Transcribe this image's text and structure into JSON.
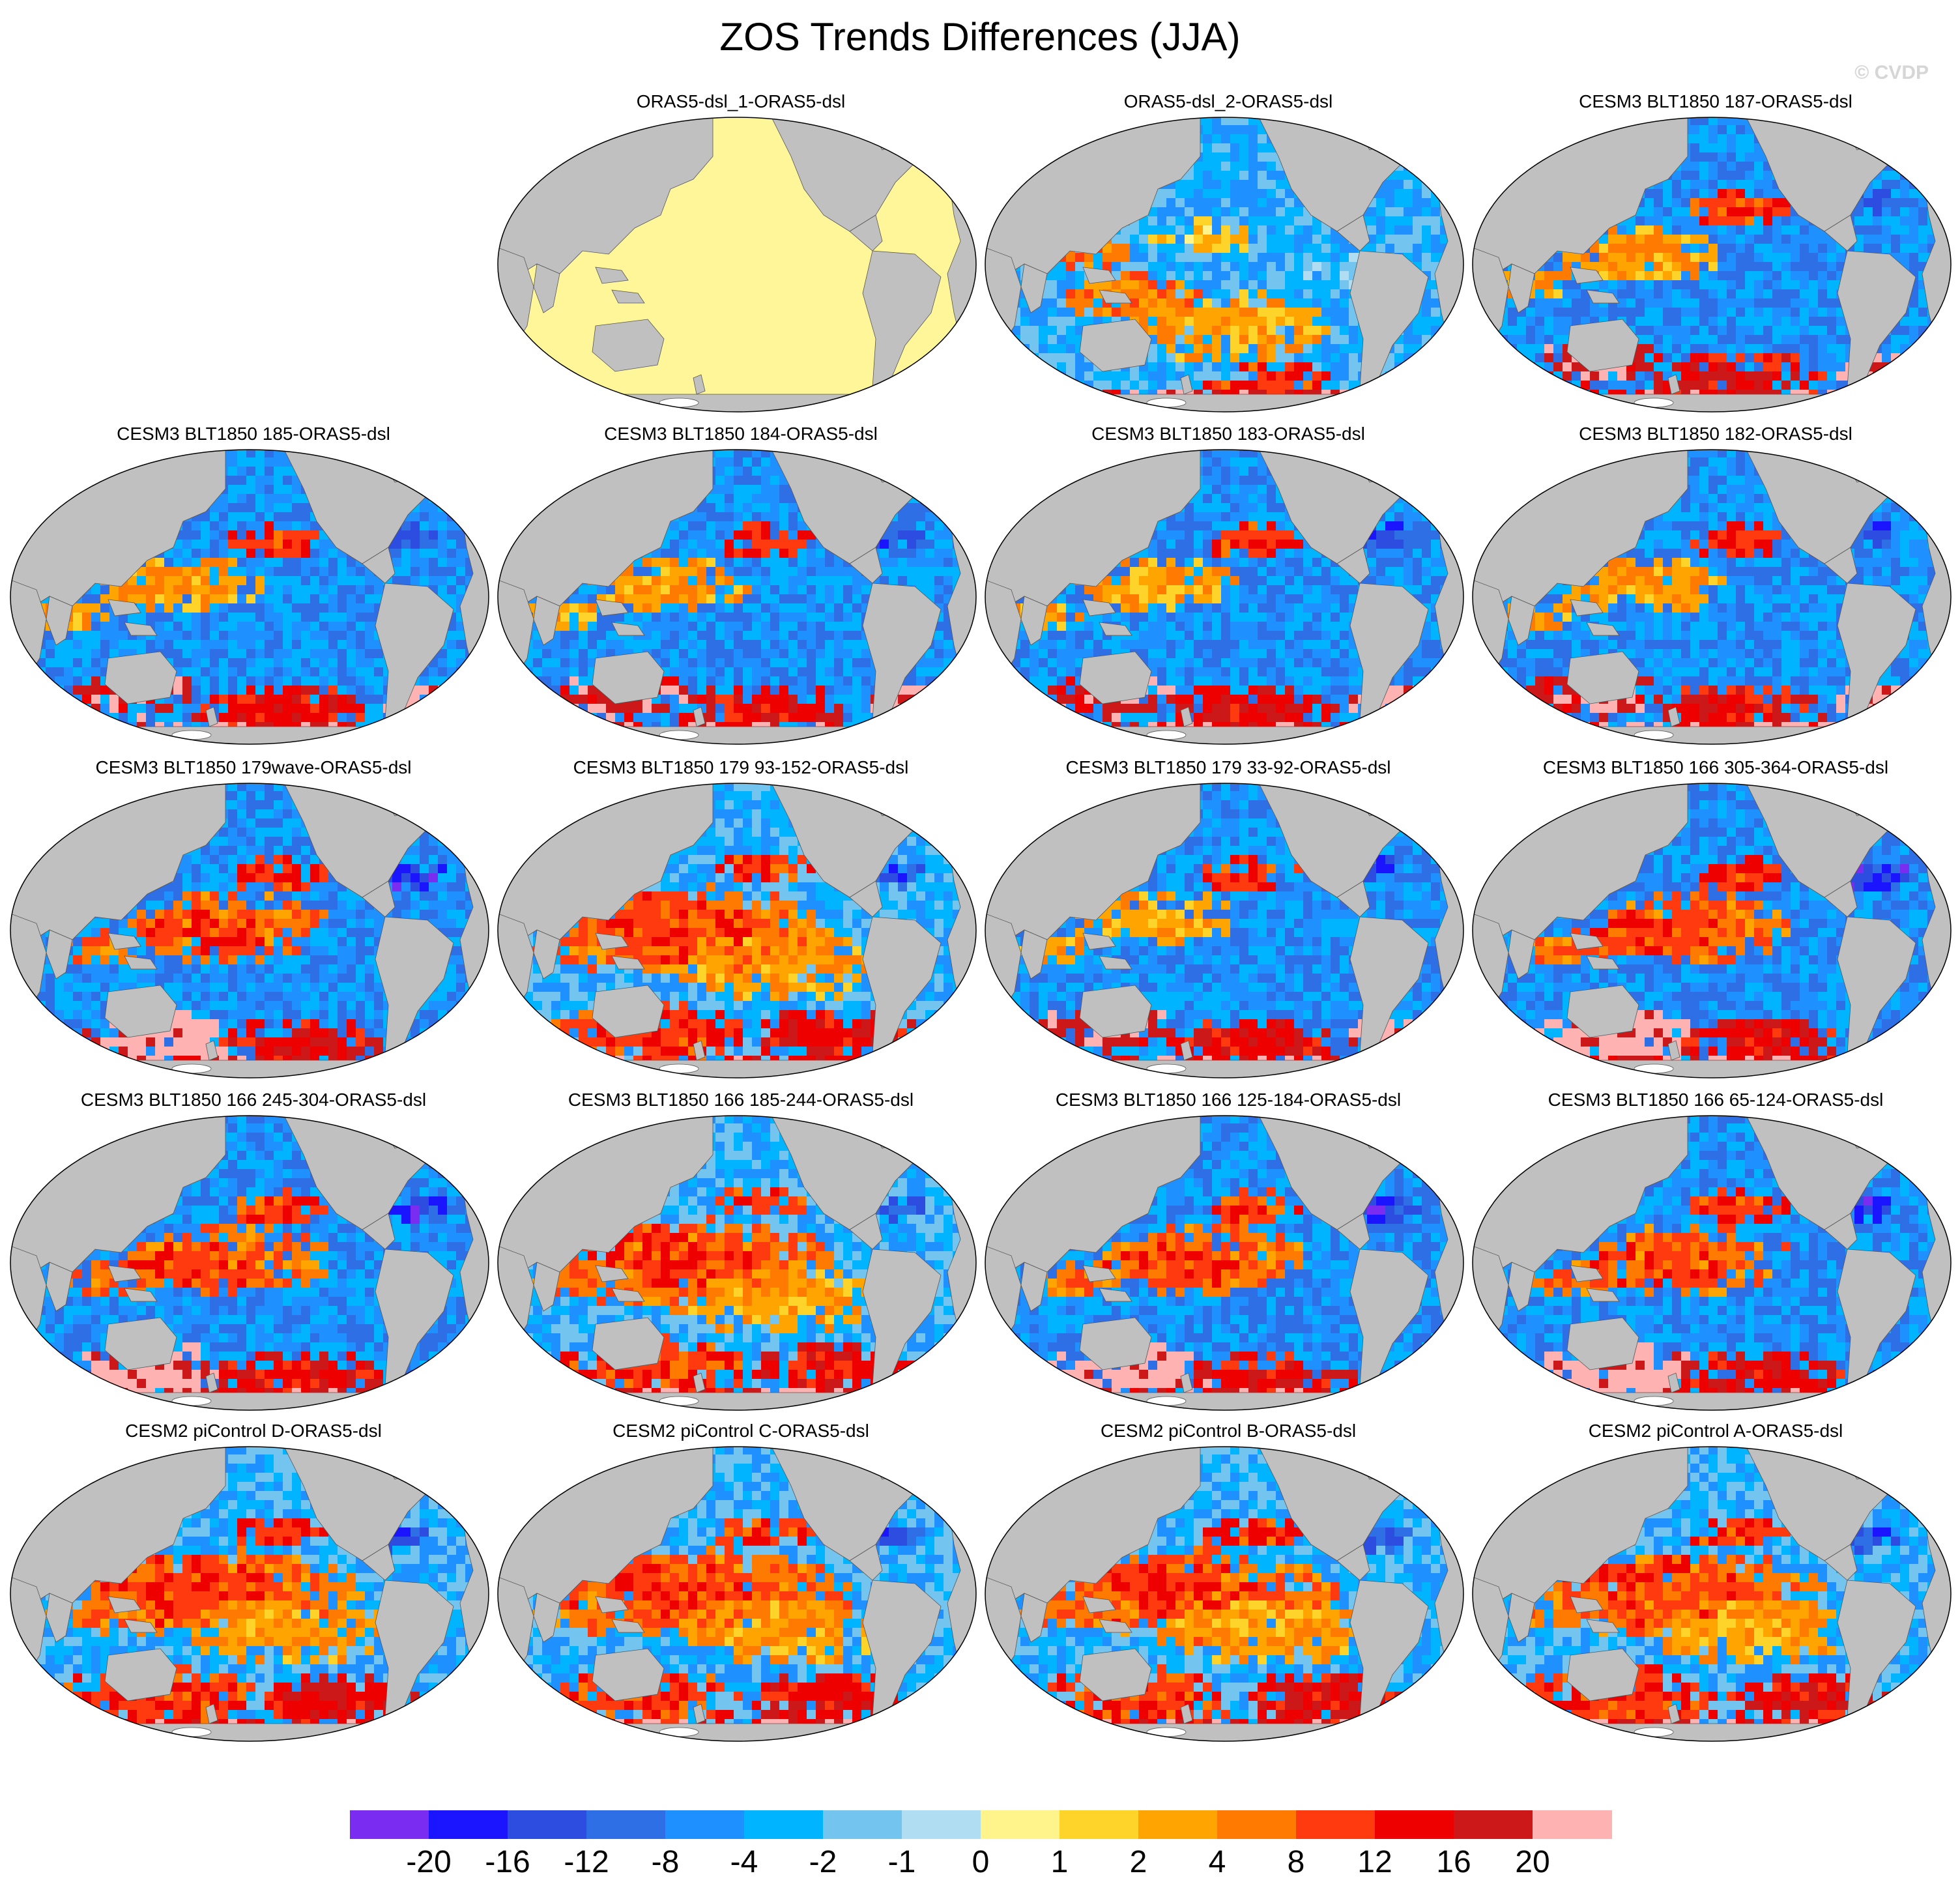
{
  "figure": {
    "title": "ZOS Trends Differences (JJA)",
    "watermark": "© CVDP"
  },
  "panels": [
    {
      "label": "",
      "empty": true
    },
    {
      "label": "ORAS5-dsl_1-ORAS5-dsl",
      "pattern": "zero"
    },
    {
      "label": "ORAS5-dsl_2-ORAS5-dsl",
      "pattern": "p2"
    },
    {
      "label": "CESM3 BLT1850 187-ORAS5-dsl",
      "pattern": "cool"
    },
    {
      "label": "CESM3 BLT1850 185-ORAS5-dsl",
      "pattern": "cool"
    },
    {
      "label": "CESM3 BLT1850 184-ORAS5-dsl",
      "pattern": "cool"
    },
    {
      "label": "CESM3 BLT1850 183-ORAS5-dsl",
      "pattern": "cool"
    },
    {
      "label": "CESM3 BLT1850 182-ORAS5-dsl",
      "pattern": "cool"
    },
    {
      "label": "CESM3 BLT1850 179wave-ORAS5-dsl",
      "pattern": "mixed"
    },
    {
      "label": "CESM3 BLT1850 179 93-152-ORAS5-dsl",
      "pattern": "warm"
    },
    {
      "label": "CESM3 BLT1850 179 33-92-ORAS5-dsl",
      "pattern": "cool"
    },
    {
      "label": "CESM3 BLT1850 166 305-364-ORAS5-dsl",
      "pattern": "mixed"
    },
    {
      "label": "CESM3 BLT1850 166 245-304-ORAS5-dsl",
      "pattern": "mixed"
    },
    {
      "label": "CESM3 BLT1850 166 185-244-ORAS5-dsl",
      "pattern": "warm"
    },
    {
      "label": "CESM3 BLT1850 166 125-184-ORAS5-dsl",
      "pattern": "mixed"
    },
    {
      "label": "CESM3 BLT1850 166 65-124-ORAS5-dsl",
      "pattern": "mixed"
    },
    {
      "label": "CESM2 piControl D-ORAS5-dsl",
      "pattern": "warm"
    },
    {
      "label": "CESM2 piControl C-ORAS5-dsl",
      "pattern": "warm"
    },
    {
      "label": "CESM2 piControl B-ORAS5-dsl",
      "pattern": "warm"
    },
    {
      "label": "CESM2 piControl A-ORAS5-dsl",
      "pattern": "warm"
    }
  ],
  "colorbar": {
    "labels": [
      "-20",
      "-16",
      "-12",
      "-8",
      "-4",
      "-2",
      "-1",
      "0",
      "1",
      "2",
      "4",
      "8",
      "12",
      "16",
      "20"
    ],
    "colors": [
      "#7a2cf0",
      "#1a14ff",
      "#2c4de0",
      "#2f6fe6",
      "#1e90ff",
      "#00b4ff",
      "#74c4f0",
      "#b0ddf2",
      "#fff38c",
      "#ffd42a",
      "#ffa400",
      "#ff7a00",
      "#ff3a0e",
      "#ee0000",
      "#cc1818",
      "#ffb2b2"
    ]
  },
  "colors": {
    "land": "#c0c0c0",
    "zero_ocean": "#fff69a",
    "antarctic_ice": "#ffffff"
  }
}
